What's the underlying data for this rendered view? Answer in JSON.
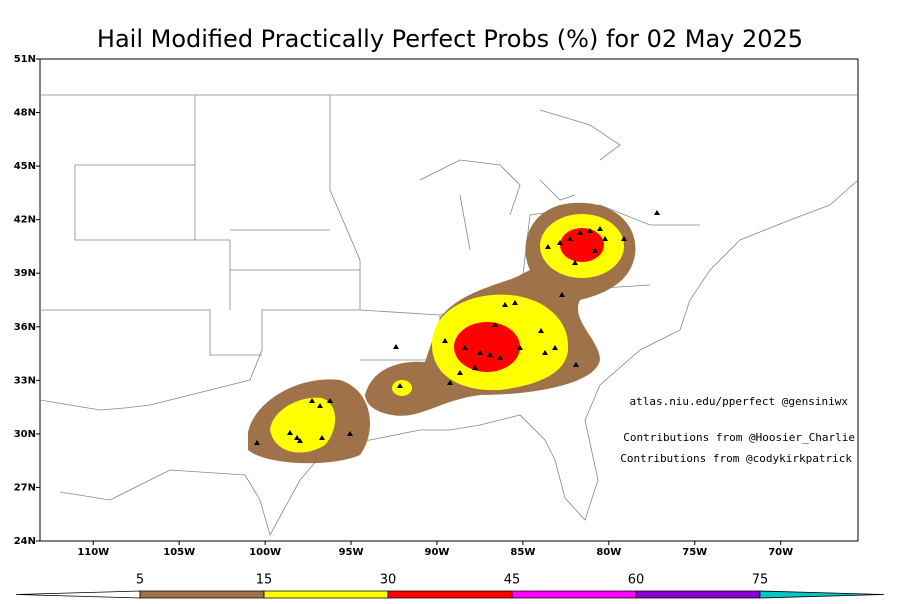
{
  "title": "Hail Modified Practically Perfect Probs (%) for 02 May 2025",
  "map": {
    "latlim": [
      24,
      51
    ],
    "lonlim": [
      -113.1,
      -65.5
    ],
    "lat_ticks": [
      {
        "value": 24,
        "label": "24N"
      },
      {
        "value": 27,
        "label": "27N"
      },
      {
        "value": 30,
        "label": "30N"
      },
      {
        "value": 33,
        "label": "33N"
      },
      {
        "value": 36,
        "label": "36N"
      },
      {
        "value": 39,
        "label": "39N"
      },
      {
        "value": 42,
        "label": "42N"
      },
      {
        "value": 45,
        "label": "45N"
      },
      {
        "value": 48,
        "label": "48N"
      },
      {
        "value": 51,
        "label": "51N"
      }
    ],
    "lon_ticks": [
      {
        "value": -110,
        "label": "110W"
      },
      {
        "value": -105,
        "label": "105W"
      },
      {
        "value": -100,
        "label": "100W"
      },
      {
        "value": -95,
        "label": "95W"
      },
      {
        "value": -90,
        "label": "90W"
      },
      {
        "value": -85,
        "label": "85W"
      },
      {
        "value": -80,
        "label": "80W"
      },
      {
        "value": -75,
        "label": "75W"
      },
      {
        "value": -70,
        "label": "70W"
      }
    ]
  },
  "annotations": [
    "atlas.niu.edu/pperfect @gensiniwx",
    "Contributions from @Hoosier_Charlie",
    "Contributions from @codykirkpatrick"
  ],
  "colorbar": {
    "ticks": [
      5,
      15,
      30,
      45,
      60,
      75
    ],
    "colors": [
      "#ffffff",
      "#a0724a",
      "#ffff00",
      "#ff0000",
      "#ff00ff",
      "#8a00d4",
      "#00c8c8"
    ]
  }
}
